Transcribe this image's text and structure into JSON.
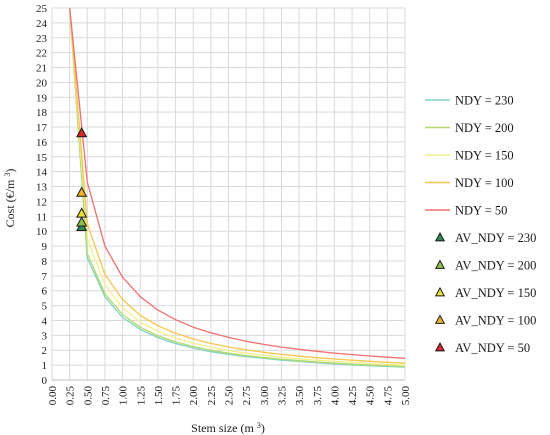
{
  "chart_data": {
    "type": "line",
    "xlabel": "Stem size (m3)",
    "ylabel": "Cost (€/m3)",
    "xlim": [
      0,
      5
    ],
    "ylim": [
      0,
      25
    ],
    "x_ticks": [
      "0.00",
      "0.25",
      "0.50",
      "0.75",
      "1.00",
      "1.25",
      "1.50",
      "1.75",
      "2.00",
      "2.25",
      "2.50",
      "2.75",
      "3.00",
      "3.25",
      "3.50",
      "3.75",
      "4.00",
      "4.25",
      "4.50",
      "4.75",
      "5.00"
    ],
    "y_ticks": [
      "0",
      "1",
      "2",
      "3",
      "4",
      "5",
      "6",
      "7",
      "8",
      "9",
      "10",
      "11",
      "12",
      "13",
      "14",
      "15",
      "16",
      "17",
      "18",
      "19",
      "20",
      "21",
      "22",
      "23",
      "24",
      "25"
    ],
    "grid": true,
    "legend_position": "right",
    "x": [
      0.25,
      0.5,
      0.75,
      1.0,
      1.25,
      1.5,
      1.75,
      2.0,
      2.25,
      2.5,
      2.75,
      3.0,
      3.25,
      3.5,
      3.75,
      4.0,
      4.25,
      4.5,
      4.75,
      5.0
    ],
    "series": [
      {
        "name": "NDY = 230",
        "color": "#7fd3c0",
        "values": [
          25.0,
          8.2,
          5.6,
          4.2,
          3.4,
          2.85,
          2.45,
          2.15,
          1.9,
          1.72,
          1.57,
          1.45,
          1.34,
          1.24,
          1.16,
          1.09,
          1.02,
          0.96,
          0.91,
          0.87
        ]
      },
      {
        "name": "NDY = 200",
        "color": "#b5d96b",
        "values": [
          25.0,
          8.5,
          5.8,
          4.4,
          3.55,
          2.97,
          2.56,
          2.25,
          2.0,
          1.8,
          1.64,
          1.51,
          1.4,
          1.3,
          1.21,
          1.14,
          1.07,
          1.01,
          0.96,
          0.91
        ]
      },
      {
        "name": "NDY = 150",
        "color": "#f2ef8c",
        "values": [
          25.0,
          9.5,
          6.4,
          4.85,
          3.9,
          3.27,
          2.82,
          2.47,
          2.2,
          1.98,
          1.8,
          1.66,
          1.53,
          1.42,
          1.33,
          1.25,
          1.18,
          1.11,
          1.05,
          1.0
        ]
      },
      {
        "name": "NDY = 100",
        "color": "#f6c64b",
        "values": [
          25.0,
          10.5,
          7.1,
          5.4,
          4.35,
          3.65,
          3.14,
          2.76,
          2.46,
          2.22,
          2.02,
          1.86,
          1.72,
          1.6,
          1.5,
          1.41,
          1.33,
          1.26,
          1.19,
          1.13
        ]
      },
      {
        "name": "NDY = 50",
        "color": "#f07070",
        "values": [
          25.0,
          13.3,
          9.0,
          6.9,
          5.6,
          4.7,
          4.05,
          3.55,
          3.17,
          2.86,
          2.6,
          2.39,
          2.21,
          2.06,
          1.93,
          1.81,
          1.71,
          1.61,
          1.53,
          1.46
        ]
      }
    ],
    "markers": [
      {
        "name": "AV_NDY = 230",
        "color": "#2e8b57",
        "x": 0.42,
        "y": 10.3
      },
      {
        "name": "AV_NDY = 200",
        "color": "#8bc34a",
        "x": 0.42,
        "y": 10.6
      },
      {
        "name": "AV_NDY = 150",
        "color": "#e8e23a",
        "x": 0.42,
        "y": 11.2
      },
      {
        "name": "AV_NDY = 100",
        "color": "#f3b329",
        "x": 0.42,
        "y": 12.6
      },
      {
        "name": "AV_NDY = 50",
        "color": "#d9282a",
        "x": 0.42,
        "y": 16.6
      }
    ]
  }
}
